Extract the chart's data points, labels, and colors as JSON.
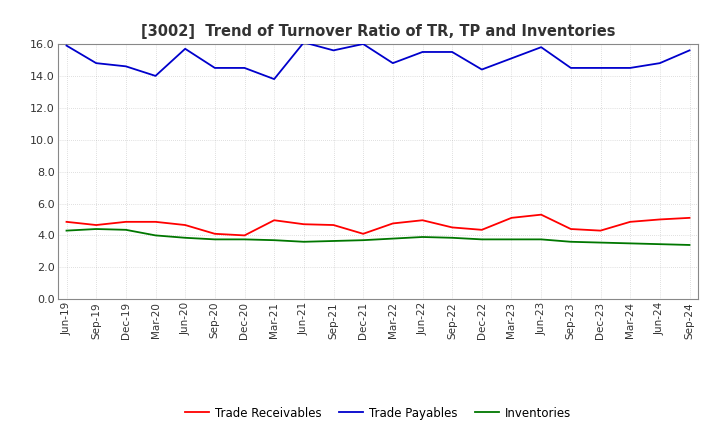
{
  "title": "[3002]  Trend of Turnover Ratio of TR, TP and Inventories",
  "x_labels": [
    "Jun-19",
    "Sep-19",
    "Dec-19",
    "Mar-20",
    "Jun-20",
    "Sep-20",
    "Dec-20",
    "Mar-21",
    "Jun-21",
    "Sep-21",
    "Dec-21",
    "Mar-22",
    "Jun-22",
    "Sep-22",
    "Dec-22",
    "Mar-23",
    "Jun-23",
    "Sep-23",
    "Dec-23",
    "Mar-24",
    "Jun-24",
    "Sep-24"
  ],
  "trade_payables": [
    15.9,
    14.8,
    14.6,
    14.0,
    15.7,
    14.5,
    14.5,
    13.8,
    16.1,
    15.6,
    16.0,
    14.8,
    15.5,
    15.5,
    14.4,
    15.1,
    15.8,
    14.5,
    14.5,
    14.5,
    14.8,
    15.6
  ],
  "trade_receivables": [
    4.85,
    4.65,
    4.85,
    4.85,
    4.65,
    4.1,
    4.0,
    4.95,
    4.7,
    4.65,
    4.1,
    4.75,
    4.95,
    4.5,
    4.35,
    5.1,
    5.3,
    4.4,
    4.3,
    4.85,
    5.0,
    5.1
  ],
  "inventories": [
    4.3,
    4.4,
    4.35,
    4.0,
    3.85,
    3.75,
    3.75,
    3.7,
    3.6,
    3.65,
    3.7,
    3.8,
    3.9,
    3.85,
    3.75,
    3.75,
    3.75,
    3.6,
    3.55,
    3.5,
    3.45,
    3.4
  ],
  "ylim": [
    0.0,
    16.0
  ],
  "yticks": [
    0.0,
    2.0,
    4.0,
    6.0,
    8.0,
    10.0,
    12.0,
    14.0,
    16.0
  ],
  "line_colors": {
    "trade_receivables": "#ff0000",
    "trade_payables": "#0000cc",
    "inventories": "#007700"
  },
  "legend_labels": [
    "Trade Receivables",
    "Trade Payables",
    "Inventories"
  ],
  "title_color": "#333333",
  "background_color": "#ffffff",
  "plot_bg_color": "#ffffff",
  "grid_color": "#999999",
  "spine_color": "#888888"
}
